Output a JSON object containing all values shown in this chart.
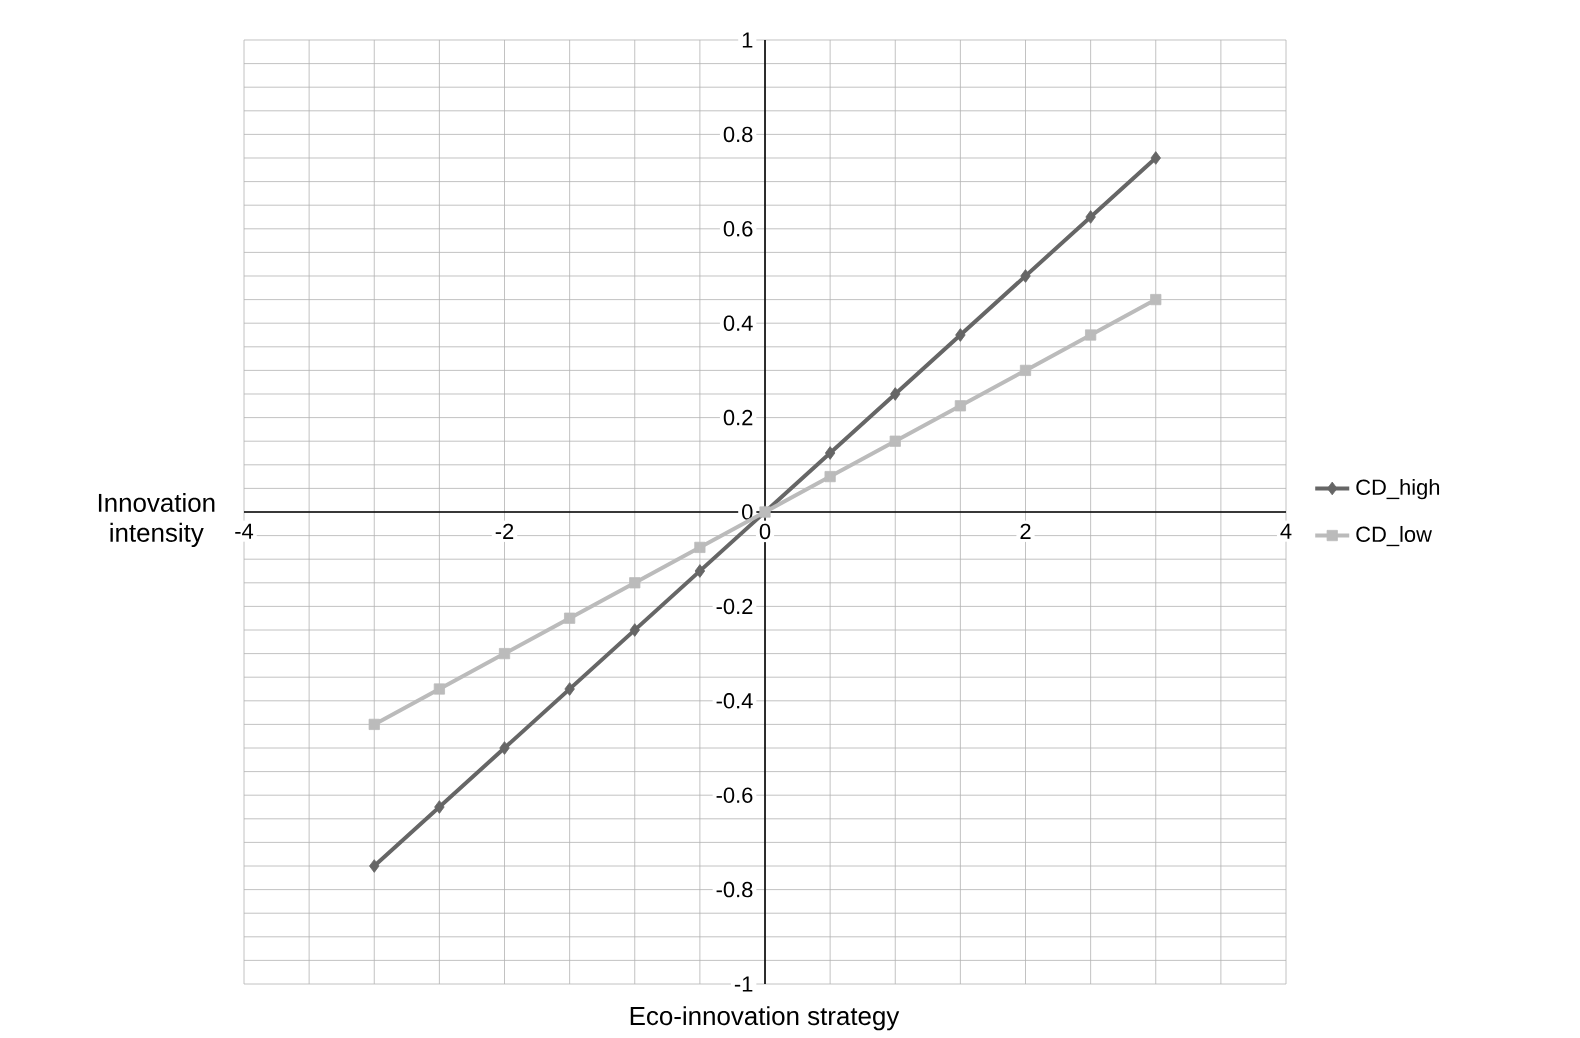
{
  "chart_data": {
    "type": "line",
    "xlabel": "Eco-innovation strategy",
    "ylabel": "Innovation intensity",
    "x": [
      -3,
      -2.5,
      -2,
      -1.5,
      -1,
      -0.5,
      0,
      0.5,
      1,
      1.5,
      2,
      2.5,
      3
    ],
    "series": [
      {
        "name": "CD_high",
        "color": "#666666",
        "marker": "diamond",
        "values": [
          -0.75,
          -0.625,
          -0.5,
          -0.375,
          -0.25,
          -0.125,
          0,
          0.125,
          0.25,
          0.375,
          0.5,
          0.625,
          0.75
        ]
      },
      {
        "name": "CD_low",
        "color": "#bbbbbb",
        "marker": "square",
        "values": [
          -0.45,
          -0.375,
          -0.3,
          -0.225,
          -0.15,
          -0.075,
          0,
          0.075,
          0.15,
          0.225,
          0.3,
          0.375,
          0.45
        ]
      }
    ],
    "xlim": [
      -4,
      4
    ],
    "ylim": [
      -1,
      1
    ],
    "xticks": [
      -4,
      -2,
      0,
      2,
      4
    ],
    "yticks": [
      -1,
      -0.8,
      -0.6,
      -0.4,
      -0.2,
      0,
      0.2,
      0.4,
      0.6,
      0.8,
      1
    ],
    "grid": true,
    "legend": "right",
    "line_style": "solid"
  }
}
